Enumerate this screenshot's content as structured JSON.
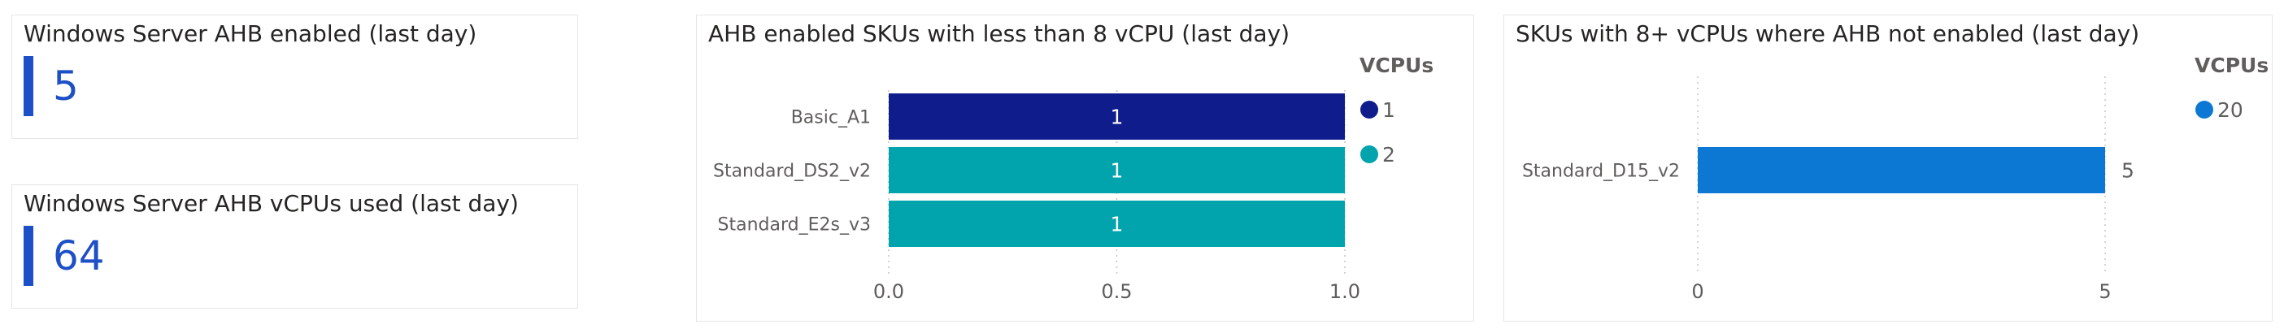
{
  "kpi_enabled": {
    "title": "Windows Server AHB enabled (last day)",
    "value": "5"
  },
  "kpi_vcpus": {
    "title": "Windows Server AHB vCPUs used (last day)",
    "value": "64"
  },
  "chart_less8": {
    "title": "AHB enabled SKUs with less than 8 vCPU (last day)",
    "legend_title": "VCPUs",
    "legend": [
      {
        "label": "1",
        "color": "#0f1c8c"
      },
      {
        "label": "2",
        "color": "#01a4ac"
      }
    ]
  },
  "chart_more8": {
    "title": "SKUs with 8+ vCPUs  where AHB not enabled (last day)",
    "legend_title": "VCPUs",
    "legend": [
      {
        "label": "20",
        "color": "#0d78d4"
      }
    ]
  },
  "chart_data": [
    {
      "type": "bar",
      "orientation": "horizontal",
      "title": "AHB enabled SKUs with less than 8 vCPU (last day)",
      "categories": [
        "Basic_A1",
        "Standard_DS2_v2",
        "Standard_E2s_v3"
      ],
      "values": [
        1,
        1,
        1
      ],
      "value_labels": [
        "1",
        "1",
        "1"
      ],
      "colors": [
        "#0f1c8c",
        "#01a4ac",
        "#01a4ac"
      ],
      "xlim": [
        0,
        1
      ],
      "ticks": [
        0,
        0.5,
        1
      ],
      "tick_labels": [
        "0.0",
        "0.5",
        "1.0"
      ],
      "grid": true,
      "legend_title": "VCPUs",
      "legend": [
        "1",
        "2"
      ],
      "legend_position": "right"
    },
    {
      "type": "bar",
      "orientation": "horizontal",
      "title": "SKUs with 8+ vCPUs  where AHB not enabled (last day)",
      "categories": [
        "Standard_D15_v2"
      ],
      "values": [
        5
      ],
      "value_labels": [
        "5"
      ],
      "colors": [
        "#0d78d4"
      ],
      "xlim": [
        0,
        5
      ],
      "ticks": [
        0,
        5
      ],
      "tick_labels": [
        "0",
        "5"
      ],
      "grid": true,
      "legend_title": "VCPUs",
      "legend": [
        "20"
      ],
      "legend_position": "right"
    }
  ]
}
